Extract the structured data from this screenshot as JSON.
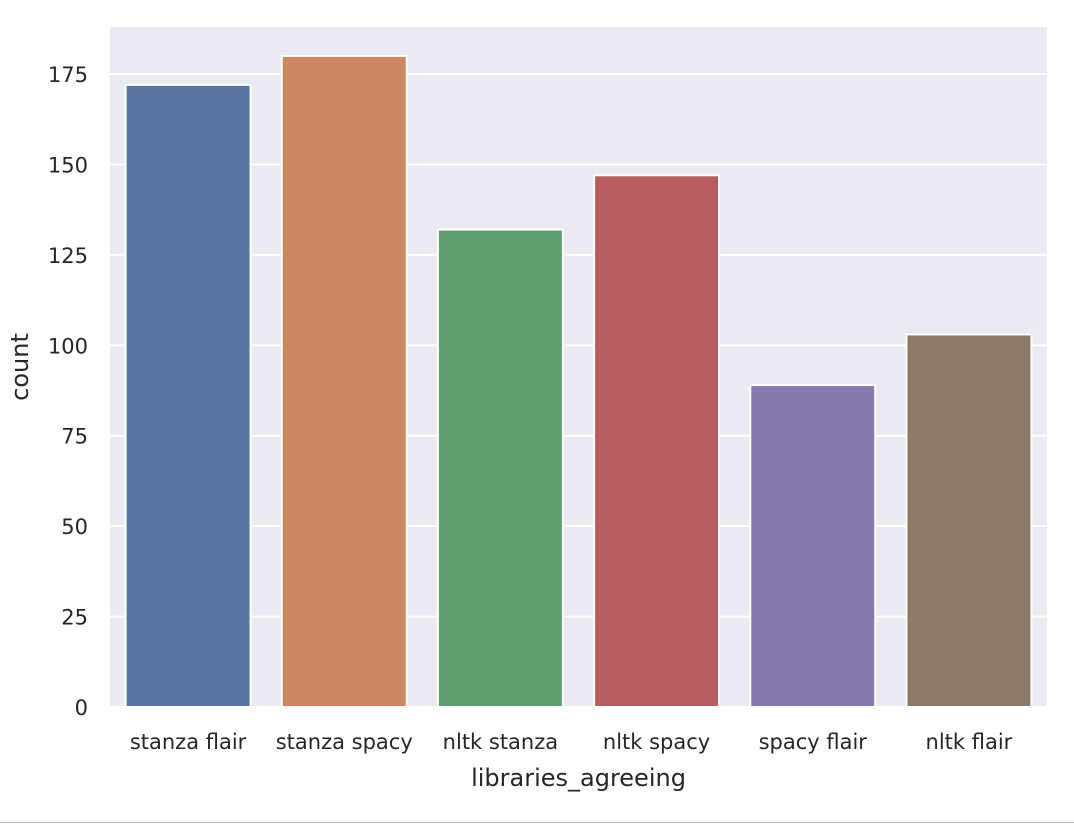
{
  "chart_data": {
    "type": "bar",
    "categories": [
      "stanza flair",
      "stanza spacy",
      "nltk stanza",
      "nltk spacy",
      "spacy flair",
      "nltk flair"
    ],
    "values": [
      172,
      180,
      132,
      147,
      89,
      103
    ],
    "title": "",
    "xlabel": "libraries_agreeing",
    "ylabel": "count",
    "ylim": [
      0,
      188
    ],
    "yticks": [
      0,
      25,
      50,
      75,
      100,
      125,
      150,
      175
    ],
    "grid": true,
    "colors": [
      "#5874a3",
      "#ce8762",
      "#5f9e6e",
      "#b75c61",
      "#857aab",
      "#8e7867"
    ],
    "background": "#eaeaf2"
  }
}
